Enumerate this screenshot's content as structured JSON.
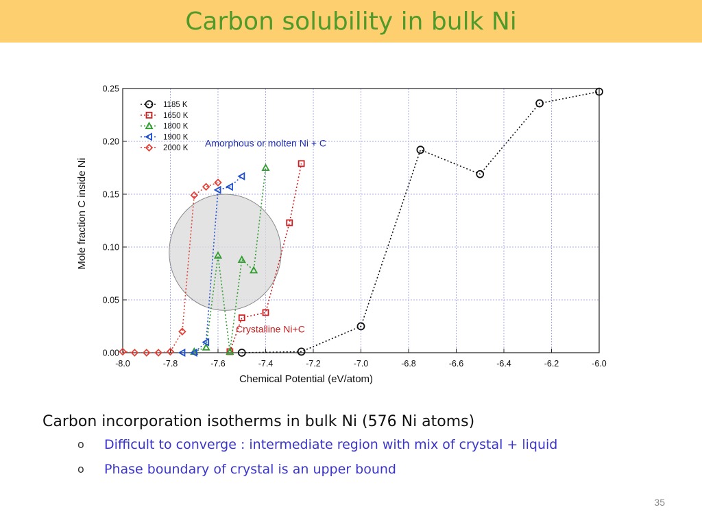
{
  "slide": {
    "title": "Carbon solubility in bulk Ni",
    "page_number": "35",
    "bullets": {
      "main": "Carbon incorporation isotherms in bulk Ni (576 Ni atoms)",
      "sub": [
        {
          "marker": "o",
          "text": "Difficult to converge : intermediate region with mix of crystal + liquid"
        },
        {
          "marker": "o",
          "text": "Phase boundary of crystal is an upper bound"
        }
      ]
    },
    "colors": {
      "title_bar": "#fecf6f",
      "title_text": "#4f9a2b",
      "sub_bullet_text": "#3a35c8"
    }
  },
  "chart_data": {
    "type": "line",
    "xlabel": "Chemical Potential (eV/atom)",
    "ylabel": "Mole fraction C inside Ni",
    "xlim": [
      -8.0,
      -6.0
    ],
    "ylim": [
      0.0,
      0.25
    ],
    "xticks": [
      "-8.0",
      "-7.8",
      "-7.6",
      "-7.4",
      "-7.2",
      "-7.0",
      "-6.8",
      "-6.6",
      "-6.4",
      "-6.2",
      "-6.0"
    ],
    "yticks": [
      "0.00",
      "0.05",
      "0.10",
      "0.15",
      "0.20",
      "0.25"
    ],
    "grid": true,
    "legend_position": "top-left",
    "series": [
      {
        "name": "1185 K",
        "color": "#111111",
        "marker": "circle",
        "x": [
          -7.5,
          -7.25,
          -7.0,
          -6.75,
          -6.5,
          -6.25,
          -6.0
        ],
        "y": [
          0.0,
          0.001,
          0.025,
          0.192,
          0.169,
          0.236,
          0.247
        ]
      },
      {
        "name": "1650 K",
        "color": "#cc1f1f",
        "marker": "square",
        "x": [
          -7.55,
          -7.5,
          -7.4,
          -7.3,
          -7.25
        ],
        "y": [
          0.001,
          0.033,
          0.038,
          0.123,
          0.179
        ]
      },
      {
        "name": "1800 K",
        "color": "#2f9e2f",
        "marker": "triangle-up",
        "x": [
          -7.7,
          -7.65,
          -7.6,
          -7.55,
          -7.5,
          -7.45,
          -7.4
        ],
        "y": [
          0.001,
          0.005,
          0.092,
          0.001,
          0.088,
          0.078,
          0.175
        ]
      },
      {
        "name": "1900 K",
        "color": "#1f4fcc",
        "marker": "triangle-left",
        "x": [
          -7.75,
          -7.7,
          -7.65,
          -7.6,
          -7.55,
          -7.5
        ],
        "y": [
          0.0,
          0.0,
          0.01,
          0.154,
          0.157,
          0.167
        ]
      },
      {
        "name": "2000 K",
        "color": "#e0443a",
        "marker": "diamond",
        "x": [
          -8.0,
          -7.95,
          -7.9,
          -7.85,
          -7.8,
          -7.75,
          -7.7,
          -7.65,
          -7.6
        ],
        "y": [
          0.001,
          0.0,
          0.0,
          0.0,
          0.001,
          0.02,
          0.149,
          0.157,
          0.161
        ]
      }
    ],
    "annotations": [
      {
        "text": "Amorphous or molten Ni + C",
        "x": -7.4,
        "y": 0.195,
        "color": "#1f2fb0"
      },
      {
        "text": "Crystalline Ni+C",
        "x": -7.38,
        "y": 0.019,
        "color": "#c81f1f"
      }
    ],
    "shaded_region": {
      "shape": "ellipse",
      "cx": -7.57,
      "cy": 0.095,
      "rx": 0.235,
      "ry": 0.055,
      "color": "#d9d9d9"
    }
  }
}
